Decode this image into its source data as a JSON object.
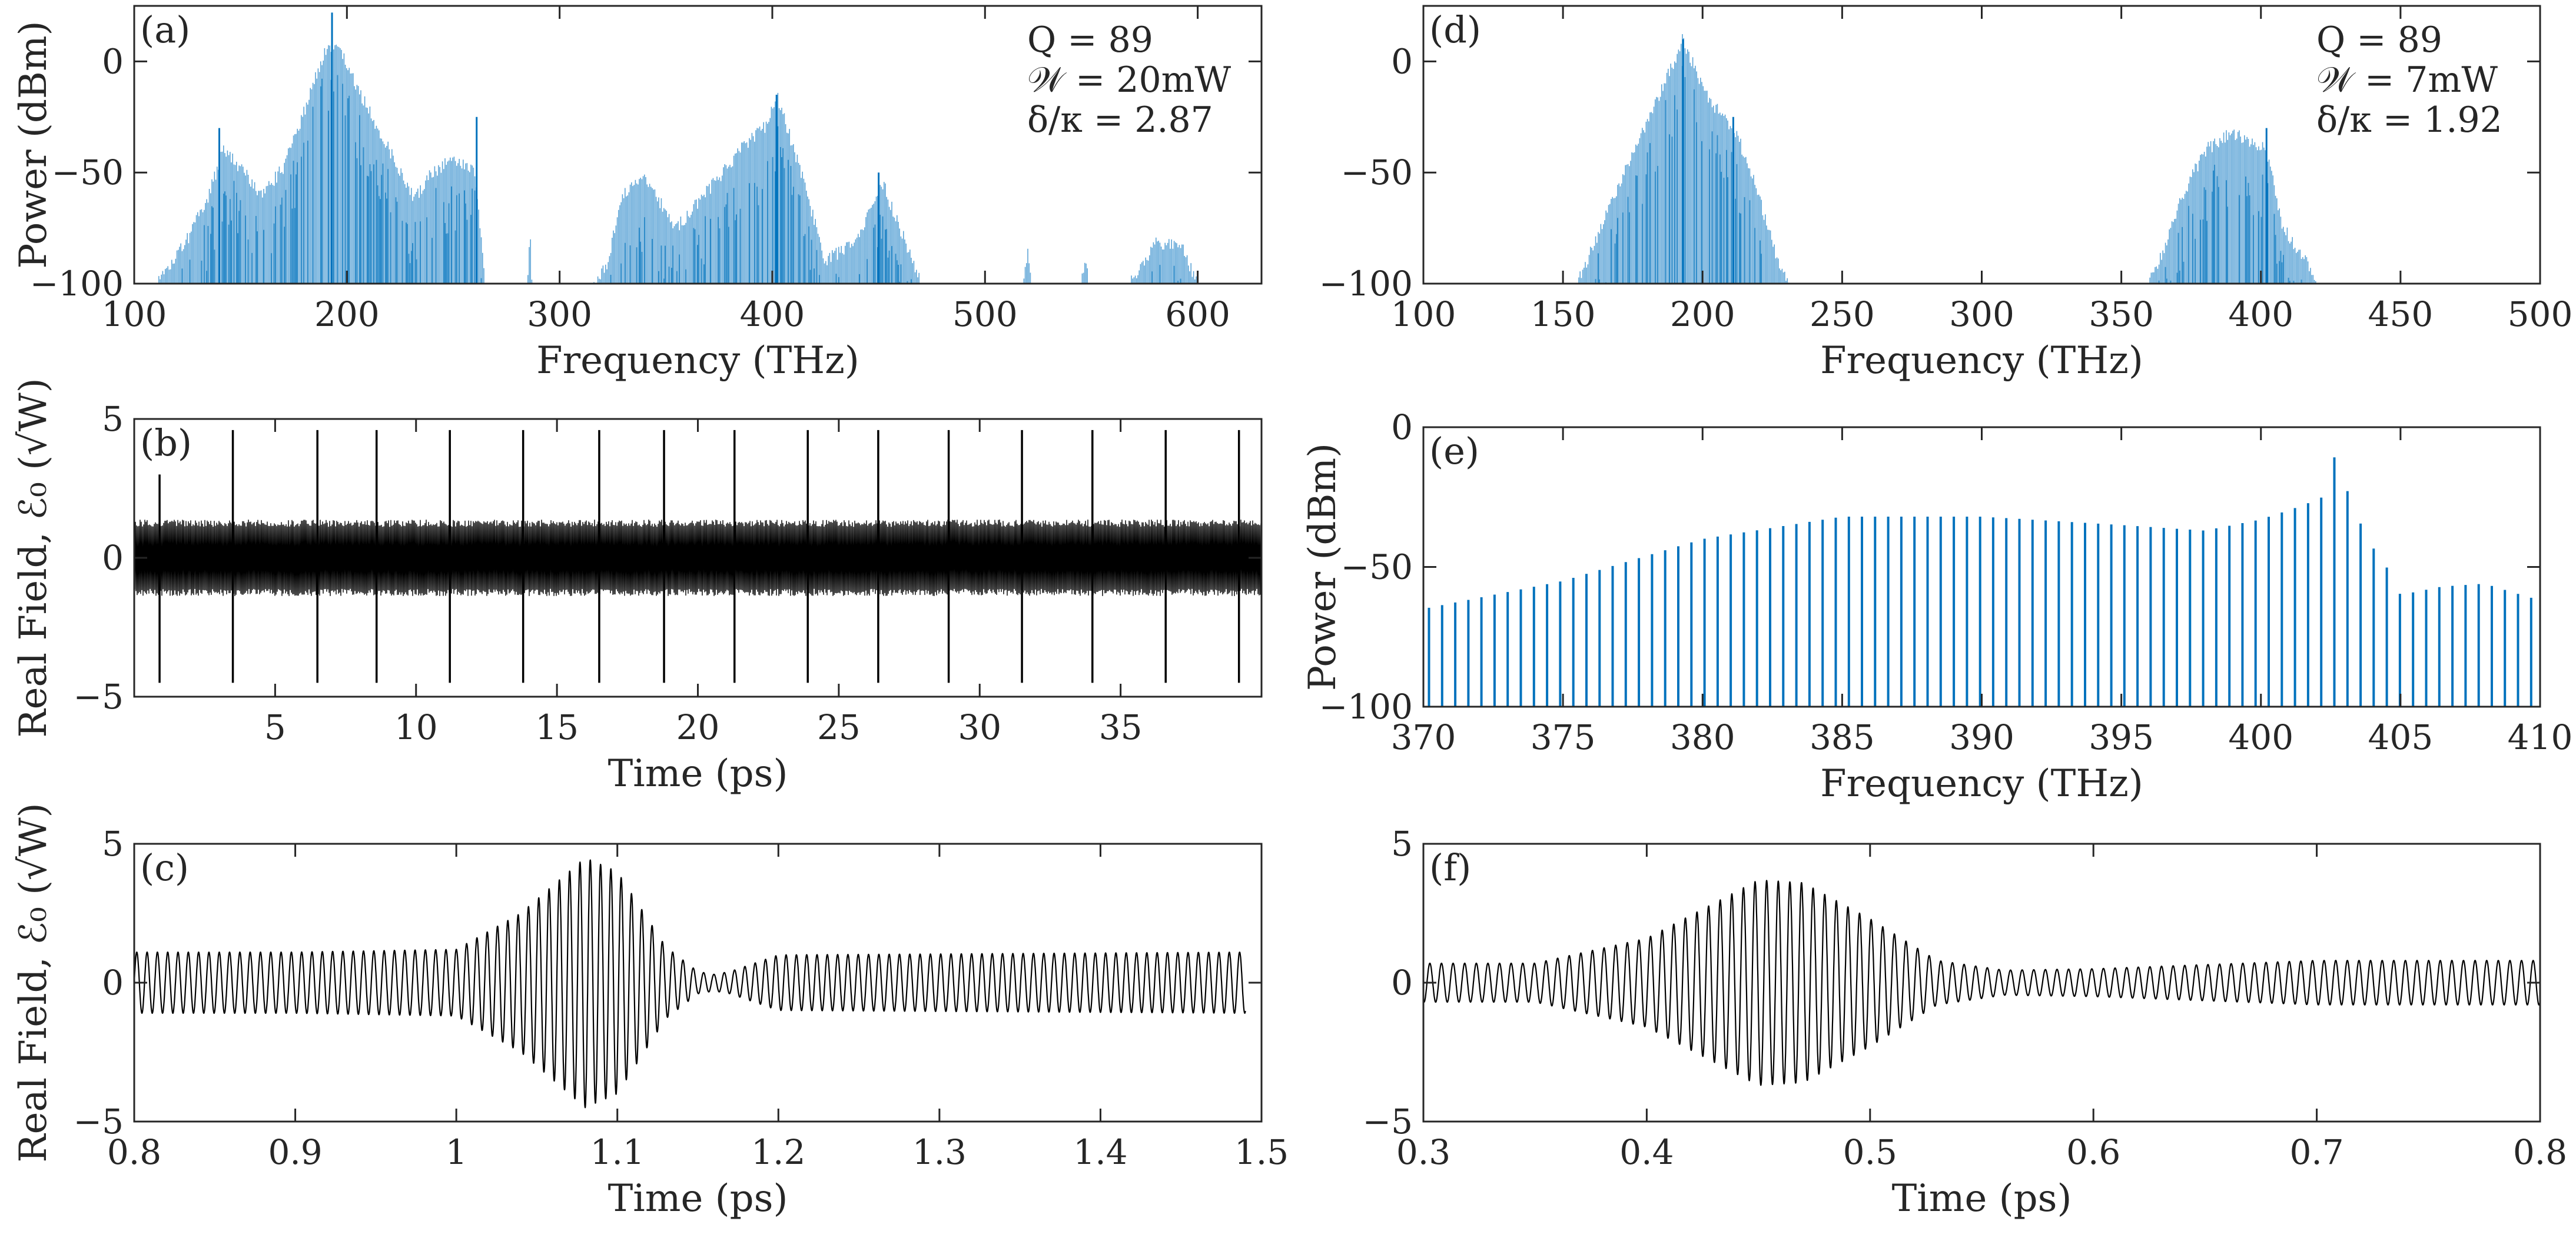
{
  "figure": {
    "colors": {
      "spectrum": "#0072BD",
      "spectrum_light": "#5BA3D6",
      "field": "#000000",
      "axis": "#262626"
    }
  },
  "chart_data": [
    {
      "id": "a",
      "type": "area",
      "panel_label": "(a)",
      "xlabel": "Frequency (THz)",
      "ylabel": "Power (dBm)",
      "xlim": [
        100,
        630
      ],
      "ylim": [
        -100,
        25
      ],
      "xticks": [
        100,
        200,
        300,
        400,
        500,
        600
      ],
      "yticks": [
        -100,
        -50,
        0
      ],
      "annotations": [
        "Q = 89",
        "𝒲 = 20mW",
        "δ/κ = 2.87"
      ],
      "series": [
        {
          "style": "dense-spectrum",
          "envelope": [
            [
              110,
              -100
            ],
            [
              125,
              -80
            ],
            [
              135,
              -60
            ],
            [
              142,
              -40
            ],
            [
              150,
              -48
            ],
            [
              160,
              -60
            ],
            [
              170,
              -48
            ],
            [
              180,
              -22
            ],
            [
              190,
              5
            ],
            [
              195,
              8
            ],
            [
              205,
              -12
            ],
            [
              220,
              -40
            ],
            [
              232,
              -62
            ],
            [
              240,
              -50
            ],
            [
              250,
              -44
            ],
            [
              260,
              -48
            ],
            [
              265,
              -100
            ],
            [
              285,
              -100
            ],
            [
              286,
              -75
            ],
            [
              287,
              -100
            ],
            [
              315,
              -100
            ],
            [
              322,
              -92
            ],
            [
              330,
              -60
            ],
            [
              340,
              -52
            ],
            [
              355,
              -75
            ],
            [
              370,
              -58
            ],
            [
              385,
              -40
            ],
            [
              398,
              -28
            ],
            [
              402,
              -15
            ],
            [
              412,
              -45
            ],
            [
              425,
              -90
            ],
            [
              440,
              -80
            ],
            [
              452,
              -55
            ],
            [
              460,
              -75
            ],
            [
              470,
              -100
            ],
            [
              518,
              -100
            ],
            [
              520,
              -85
            ],
            [
              522,
              -100
            ],
            [
              545,
              -100
            ],
            [
              547,
              -90
            ],
            [
              549,
              -100
            ],
            [
              568,
              -100
            ],
            [
              580,
              -82
            ],
            [
              592,
              -82
            ],
            [
              600,
              -100
            ]
          ],
          "peaks": [
            [
              140,
              -30
            ],
            [
              193,
              22
            ],
            [
              261,
              -25
            ],
            [
              402,
              -15
            ],
            [
              450,
              -50
            ]
          ]
        }
      ]
    },
    {
      "id": "b",
      "type": "line",
      "panel_label": "(b)",
      "xlabel": "Time (ps)",
      "ylabel": "Real Field, ℰ₀ (√W)",
      "xlim": [
        0,
        40
      ],
      "ylim": [
        -5,
        5
      ],
      "xticks": [
        5,
        10,
        15,
        20,
        25,
        30,
        35
      ],
      "yticks": [
        -5,
        0,
        5
      ],
      "series": [
        {
          "style": "pulse-train",
          "carrier_amplitude": 1.3,
          "pulse_times": [
            0.9,
            3.5,
            6.5,
            8.6,
            11.2,
            13.8,
            16.5,
            18.8,
            21.3,
            23.9,
            26.4,
            28.9,
            31.5,
            34.0,
            36.6,
            39.2
          ],
          "pulse_peak": 4.6,
          "pulse_trough": -4.5,
          "first_pulse_peak": 3.0
        }
      ]
    },
    {
      "id": "c",
      "type": "line",
      "panel_label": "(c)",
      "xlabel": "Time (ps)",
      "ylabel": "Real Field, ℰ₀ (√W)",
      "xlim": [
        0.8,
        1.5
      ],
      "ylim": [
        -5,
        5
      ],
      "xticks": [
        0.8,
        0.9,
        1.0,
        1.1,
        1.2,
        1.3,
        1.4,
        1.5
      ],
      "yticks": [
        -5,
        0,
        5
      ],
      "series": [
        {
          "style": "oscillation",
          "range": [
            0.8,
            1.49
          ],
          "carrier_period": 0.0064,
          "envelope": [
            [
              0.8,
              1.1
            ],
            [
              0.9,
              1.1
            ],
            [
              1.0,
              1.2
            ],
            [
              1.04,
              2.5
            ],
            [
              1.08,
              4.5
            ],
            [
              1.1,
              4.0
            ],
            [
              1.13,
              1.3
            ],
            [
              1.15,
              0.4
            ],
            [
              1.16,
              0.3
            ],
            [
              1.17,
              0.4
            ],
            [
              1.2,
              1.0
            ],
            [
              1.49,
              1.1
            ]
          ]
        }
      ]
    },
    {
      "id": "d",
      "type": "area",
      "panel_label": "(d)",
      "xlabel": "Frequency (THz)",
      "ylabel": "",
      "xlim": [
        100,
        500
      ],
      "ylim": [
        -100,
        25
      ],
      "xticks": [
        100,
        150,
        200,
        250,
        300,
        350,
        400,
        450,
        500
      ],
      "yticks": [
        -100,
        -50,
        0
      ],
      "annotations": [
        "Q = 89",
        "𝒲 = 7mW",
        "δ/κ = 1.92"
      ],
      "series": [
        {
          "style": "dense-spectrum",
          "envelope": [
            [
              155,
              -100
            ],
            [
              162,
              -80
            ],
            [
              170,
              -55
            ],
            [
              180,
              -28
            ],
            [
              188,
              -5
            ],
            [
              193,
              10
            ],
            [
              200,
              -12
            ],
            [
              207,
              -25
            ],
            [
              213,
              -35
            ],
            [
              220,
              -60
            ],
            [
              227,
              -90
            ],
            [
              232,
              -100
            ],
            [
              360,
              -100
            ],
            [
              365,
              -85
            ],
            [
              372,
              -60
            ],
            [
              380,
              -40
            ],
            [
              390,
              -32
            ],
            [
              398,
              -38
            ],
            [
              402,
              -40
            ],
            [
              408,
              -75
            ],
            [
              416,
              -90
            ],
            [
              420,
              -100
            ]
          ],
          "peaks": [
            [
              193,
              10
            ],
            [
              211,
              -25
            ],
            [
              402,
              -30
            ]
          ]
        }
      ]
    },
    {
      "id": "e",
      "type": "bar",
      "panel_label": "(e)",
      "xlabel": "Frequency (THz)",
      "ylabel": "Power (dBm)",
      "xlim": [
        370,
        410
      ],
      "ylim": [
        -100,
        0
      ],
      "xticks": [
        370,
        375,
        380,
        385,
        390,
        395,
        400,
        405,
        410
      ],
      "yticks": [
        -100,
        -50,
        0
      ],
      "series": [
        {
          "style": "comb",
          "start": 370.2,
          "spacing": 0.47,
          "envelope": [
            [
              370,
              -65
            ],
            [
              375,
              -55
            ],
            [
              380,
              -40
            ],
            [
              385,
              -32
            ],
            [
              390,
              -32
            ],
            [
              395,
              -35
            ],
            [
              398,
              -37
            ],
            [
              400,
              -33
            ],
            [
              401.5,
              -28
            ],
            [
              402.2,
              -25
            ],
            [
              402.6,
              -10
            ],
            [
              403.3,
              -28
            ],
            [
              403.8,
              -40
            ],
            [
              404.5,
              -50
            ],
            [
              405,
              -60
            ],
            [
              406.5,
              -57
            ],
            [
              408,
              -56
            ],
            [
              410,
              -62
            ]
          ]
        }
      ]
    },
    {
      "id": "f",
      "type": "line",
      "panel_label": "(f)",
      "xlabel": "Time (ps)",
      "ylabel": "",
      "xlim": [
        0.3,
        0.8
      ],
      "ylim": [
        -5,
        5
      ],
      "xticks": [
        0.3,
        0.4,
        0.5,
        0.6,
        0.7,
        0.8
      ],
      "yticks": [
        -5,
        0,
        5
      ],
      "series": [
        {
          "style": "oscillation",
          "range": [
            0.3,
            0.8
          ],
          "carrier_period": 0.0052,
          "envelope": [
            [
              0.3,
              0.7
            ],
            [
              0.35,
              0.7
            ],
            [
              0.4,
              1.6
            ],
            [
              0.45,
              3.7
            ],
            [
              0.47,
              3.6
            ],
            [
              0.5,
              2.3
            ],
            [
              0.53,
              0.8
            ],
            [
              0.56,
              0.45
            ],
            [
              0.6,
              0.5
            ],
            [
              0.7,
              0.8
            ],
            [
              0.8,
              0.8
            ]
          ]
        }
      ]
    }
  ]
}
